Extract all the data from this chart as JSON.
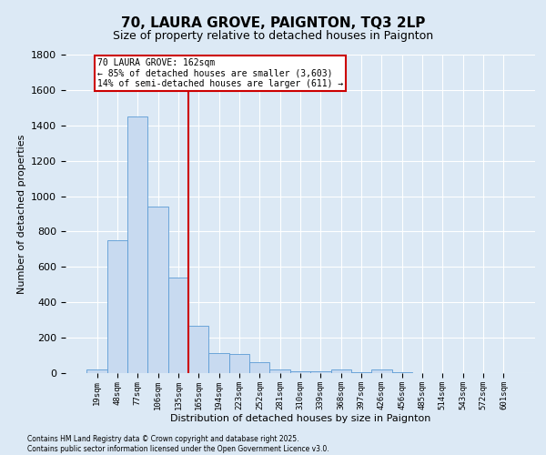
{
  "title": "70, LAURA GROVE, PAIGNTON, TQ3 2LP",
  "subtitle": "Size of property relative to detached houses in Paignton",
  "xlabel": "Distribution of detached houses by size in Paignton",
  "ylabel": "Number of detached properties",
  "categories": [
    "19sqm",
    "48sqm",
    "77sqm",
    "106sqm",
    "135sqm",
    "165sqm",
    "194sqm",
    "223sqm",
    "252sqm",
    "281sqm",
    "310sqm",
    "339sqm",
    "368sqm",
    "397sqm",
    "426sqm",
    "456sqm",
    "485sqm",
    "514sqm",
    "543sqm",
    "572sqm",
    "601sqm"
  ],
  "values": [
    20,
    750,
    1450,
    940,
    540,
    270,
    115,
    110,
    60,
    20,
    10,
    8,
    20,
    5,
    20,
    3,
    2,
    2,
    1,
    1,
    1
  ],
  "bar_color": "#c8daf0",
  "bar_edge_color": "#5b9bd5",
  "red_line_x": 4.5,
  "annotation_line1": "70 LAURA GROVE: 162sqm",
  "annotation_line2": "← 85% of detached houses are smaller (3,603)",
  "annotation_line3": "14% of semi-detached houses are larger (611) →",
  "annotation_box_color": "#ffffff",
  "annotation_box_edge": "#cc0000",
  "red_line_color": "#cc0000",
  "background_color": "#dce9f5",
  "plot_bg_color": "#dce9f5",
  "grid_color": "#ffffff",
  "ylim": [
    0,
    1800
  ],
  "yticks": [
    0,
    200,
    400,
    600,
    800,
    1000,
    1200,
    1400,
    1600,
    1800
  ],
  "footer_line1": "Contains HM Land Registry data © Crown copyright and database right 2025.",
  "footer_line2": "Contains public sector information licensed under the Open Government Licence v3.0."
}
